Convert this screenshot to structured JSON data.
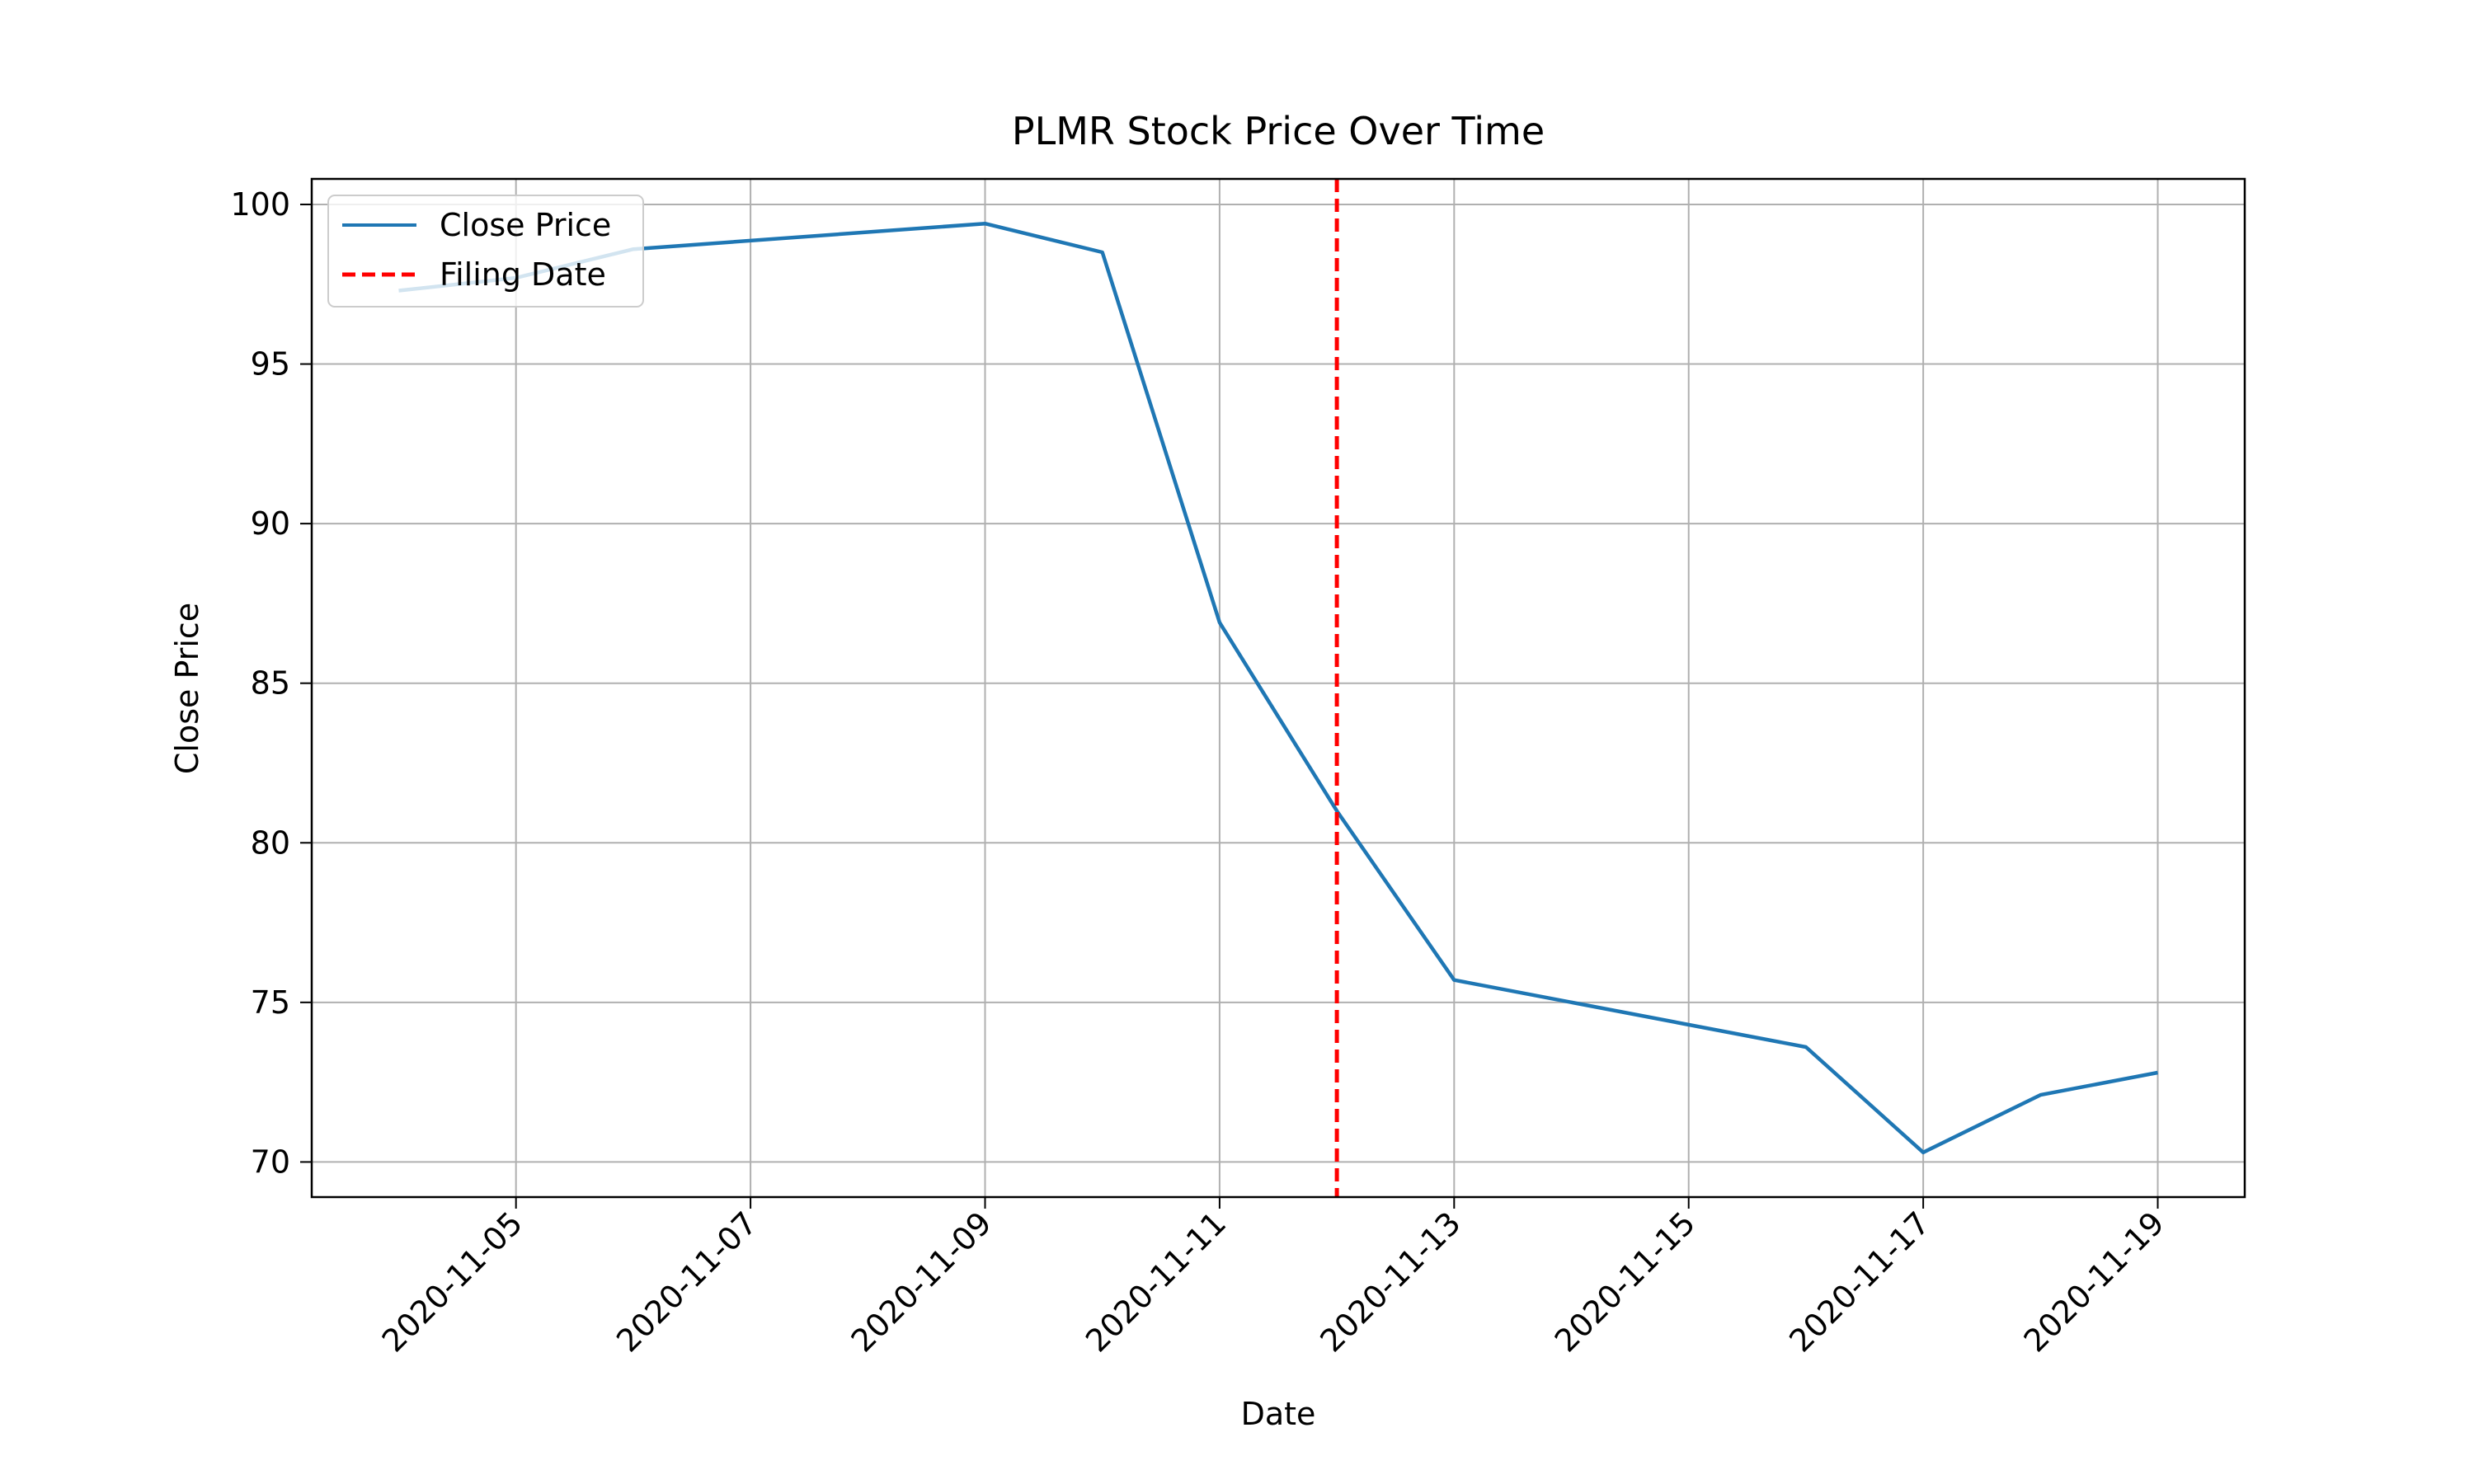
{
  "chart_data": {
    "type": "line",
    "title": "PLMR Stock Price Over Time",
    "xlabel": "Date",
    "ylabel": "Close Price",
    "x_ticks": [
      "2020-11-05",
      "2020-11-07",
      "2020-11-09",
      "2020-11-11",
      "2020-11-13",
      "2020-11-15",
      "2020-11-17",
      "2020-11-19"
    ],
    "y_ticks": [
      70,
      75,
      80,
      85,
      90,
      95,
      100
    ],
    "xlim": [
      "2020-11-04",
      "2020-11-19"
    ],
    "ylim": [
      68.9,
      100.8
    ],
    "grid": true,
    "legend_position": "top-left",
    "series": [
      {
        "name": "Close Price",
        "color": "#1f77b4",
        "x": [
          "2020-11-04",
          "2020-11-05",
          "2020-11-06",
          "2020-11-09",
          "2020-11-10",
          "2020-11-11",
          "2020-11-12",
          "2020-11-13",
          "2020-11-16",
          "2020-11-17",
          "2020-11-18",
          "2020-11-19"
        ],
        "y": [
          97.3,
          97.7,
          98.6,
          99.4,
          98.5,
          86.9,
          81.0,
          75.7,
          73.6,
          70.3,
          72.1,
          72.8
        ]
      }
    ],
    "vertical_line": {
      "name": "Filing Date",
      "x": "2020-11-12",
      "color": "#ff0000",
      "style": "dashed"
    }
  }
}
